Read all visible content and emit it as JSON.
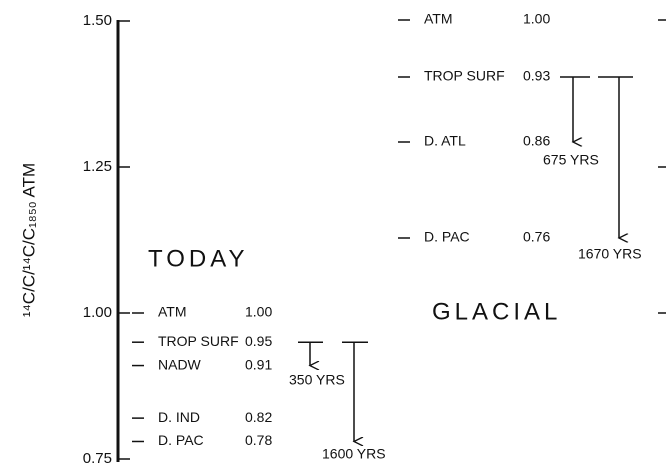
{
  "chart_data": {
    "type": "level",
    "y_label": "¹⁴C/C/¹⁴C/C₁₈₅₀ ATM",
    "ylim": [
      0.75,
      1.5
    ],
    "yticks": [
      {
        "value": 0.75,
        "label": "0.75"
      },
      {
        "value": 1,
        "label": "1.00"
      },
      {
        "value": 1.25,
        "label": "1.25"
      },
      {
        "value": 1.5,
        "label": "1.50"
      }
    ],
    "panels": [
      {
        "title": "TODAY",
        "items": [
          {
            "name": "ATM",
            "value": 1,
            "value_label": "1.00"
          },
          {
            "name": "TROP SURF",
            "value": 0.95,
            "value_label": "0.95"
          },
          {
            "name": "NADW",
            "value": 0.91,
            "value_label": "0.91"
          },
          {
            "name": "D. IND",
            "value": 0.82,
            "value_label": "0.82"
          },
          {
            "name": "D. PAC",
            "value": 0.78,
            "value_label": "0.78"
          }
        ],
        "arrows": [
          "350 YRS",
          "1600 YRS"
        ]
      },
      {
        "title": "GLACIAL",
        "items": [
          {
            "name": "ATM",
            "value": 1,
            "value_label": "1.00"
          },
          {
            "name": "TROP SURF",
            "value": 0.93,
            "value_label": "0.93"
          },
          {
            "name": "D. ATL",
            "value": 0.86,
            "value_label": "0.86"
          },
          {
            "name": "D. PAC",
            "value": 0.76,
            "value_label": "0.76"
          }
        ],
        "arrows": [
          "675 YRS",
          "1670 YRS"
        ]
      }
    ]
  }
}
